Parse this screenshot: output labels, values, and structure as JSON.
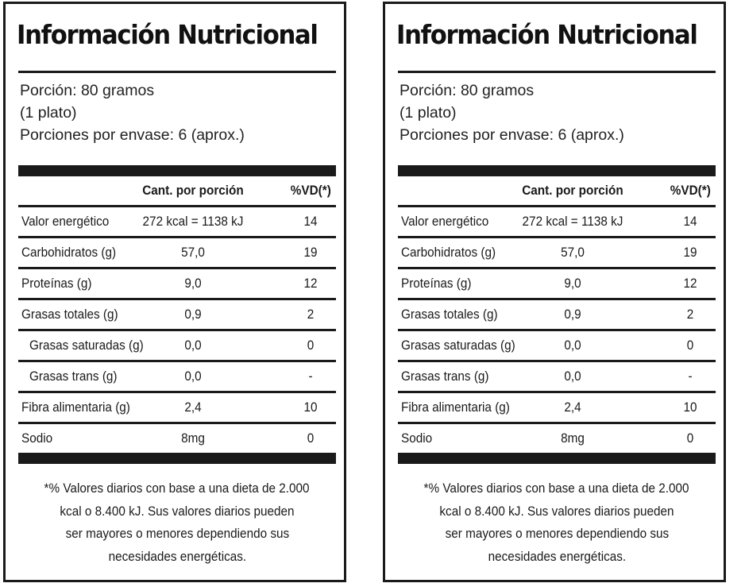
{
  "panels": [
    {
      "title": "Información Nutricional",
      "serving_lines": [
        "Porción: 80 gramos",
        "(1 plato)",
        "Porciones por envase: 6 (aprox.)"
      ],
      "table": {
        "header_amount": "Cant. por porción",
        "header_dv": "%VD(*)",
        "rows": [
          {
            "name": "Valor energético",
            "amount": "272 kcal = 1138 kJ",
            "dv": "14"
          },
          {
            "name": "Carbohidratos (g)",
            "amount": "57,0",
            "dv": "19"
          },
          {
            "name": "Proteínas (g)",
            "amount": "9,0",
            "dv": "12"
          },
          {
            "name": "Grasas totales (g)",
            "amount": "0,9",
            "dv": "2"
          },
          {
            "name": "Grasas saturadas (g)",
            "amount": "0,0",
            "dv": "0"
          },
          {
            "name": "Grasas trans (g)",
            "amount": "0,0",
            "dv": "-"
          },
          {
            "name": "Fibra alimentaria (g)",
            "amount": "2,4",
            "dv": "10"
          },
          {
            "name": "Sodio",
            "amount": "8mg",
            "dv": "0"
          }
        ]
      },
      "footnote_lines": [
        "*% Valores diarios con base a una dieta de 2.000",
        "kcal o 8.400 kJ. Sus valores diarios pueden",
        "ser mayores o menores dependiendo sus",
        "necesidades energéticas."
      ]
    },
    {
      "title": "Información Nutricional",
      "serving_lines": [
        "Porción: 80 gramos",
        "(1 plato)",
        "Porciones por envase: 6 (aprox.)"
      ],
      "table": {
        "header_amount": "Cant. por porción",
        "header_dv": "%VD(*)",
        "rows": [
          {
            "name": "Valor energético",
            "amount": "272 kcal = 1138 kJ",
            "dv": "14"
          },
          {
            "name": "Carbohidratos (g)",
            "amount": "57,0",
            "dv": "19"
          },
          {
            "name": "Proteínas (g)",
            "amount": "9,0",
            "dv": "12"
          },
          {
            "name": "Grasas totales (g)",
            "amount": "0,9",
            "dv": "2"
          },
          {
            "name": "Grasas saturadas (g)",
            "amount": "0,0",
            "dv": "0"
          },
          {
            "name": "Grasas trans (g)",
            "amount": "0,0",
            "dv": "-"
          },
          {
            "name": "Fibra alimentaria (g)",
            "amount": "2,4",
            "dv": "10"
          },
          {
            "name": "Sodio",
            "amount": "8mg",
            "dv": "0"
          }
        ]
      },
      "footnote_lines": [
        "*% Valores diarios con base a una dieta de 2.000",
        "kcal o 8.400 kJ. Sus valores diarios pueden",
        "ser mayores o menores dependiendo sus",
        "necesidades energéticas."
      ]
    }
  ]
}
